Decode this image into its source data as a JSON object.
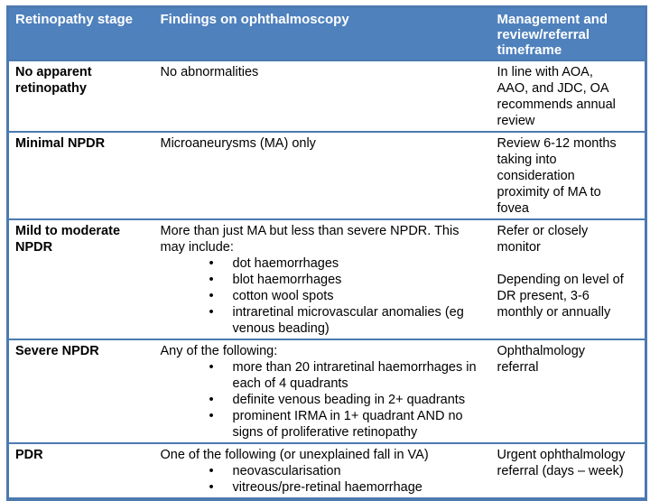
{
  "colors": {
    "header_bg": "#4f81bd",
    "header_text": "#ffffff",
    "border": "#4c7ab1",
    "body_text": "#000000",
    "page_bg": "#ffffff"
  },
  "table": {
    "header": [
      {
        "label": "Retinopathy stage",
        "lines": [
          "Retinopathy stage"
        ]
      },
      {
        "label": "Findings on ophthalmoscopy",
        "lines": [
          "Findings on ophthalmoscopy"
        ]
      },
      {
        "label": "Management and review/referral timeframe",
        "lines": [
          "Management and",
          "review/referral",
          "timeframe"
        ]
      }
    ],
    "rows": [
      {
        "stage": "No apparent retinopathy",
        "stage_lines": [
          "No apparent",
          "retinopathy"
        ],
        "findings": {
          "intro_lines": [
            "No abnormalities"
          ],
          "bullets": []
        },
        "management_paragraphs": [
          [
            "In line with AOA,",
            "AAO, and JDC, OA",
            "recommends annual",
            "review"
          ]
        ]
      },
      {
        "stage": "Minimal NPDR",
        "stage_lines": [
          "Minimal NPDR"
        ],
        "findings": {
          "intro_lines": [
            "Microaneurysms (MA) only"
          ],
          "bullets": []
        },
        "management_paragraphs": [
          [
            "Review 6-12 months",
            "taking into",
            "consideration",
            "proximity of MA to",
            "fovea"
          ]
        ]
      },
      {
        "stage": "Mild to moderate NPDR",
        "stage_lines": [
          "Mild to moderate",
          "NPDR"
        ],
        "findings": {
          "intro_lines": [
            "More than just MA but less than severe NPDR. This",
            "may include:"
          ],
          "bullets": [
            [
              "dot haemorrhages"
            ],
            [
              "blot haemorrhages"
            ],
            [
              "cotton wool spots"
            ],
            [
              "intraretinal microvascular anomalies (eg",
              "venous beading)"
            ]
          ]
        },
        "management_paragraphs": [
          [
            "Refer or closely",
            "monitor"
          ],
          [
            "Depending on level of",
            "DR present, 3-6",
            "monthly or annually"
          ]
        ]
      },
      {
        "stage": "Severe NPDR",
        "stage_lines": [
          "Severe NPDR"
        ],
        "findings": {
          "intro_lines": [
            "Any of the following:"
          ],
          "bullets": [
            [
              "more than 20 intraretinal haemorrhages in",
              "each of 4 quadrants"
            ],
            [
              "definite venous beading in 2+ quadrants"
            ],
            [
              "prominent IRMA in 1+ quadrant AND no",
              "signs of proliferative retinopathy"
            ]
          ]
        },
        "management_paragraphs": [
          [
            "Ophthalmology",
            "referral"
          ]
        ]
      },
      {
        "stage": "PDR",
        "stage_lines": [
          "PDR"
        ],
        "findings": {
          "intro_lines": [
            "One of the following (or unexplained fall in VA)"
          ],
          "bullets": [
            [
              "neovascularisation"
            ],
            [
              "vitreous/pre-retinal haemorrhage"
            ]
          ]
        },
        "management_paragraphs": [
          [
            "Urgent ophthalmology",
            "referral (days – week)"
          ]
        ]
      }
    ]
  }
}
